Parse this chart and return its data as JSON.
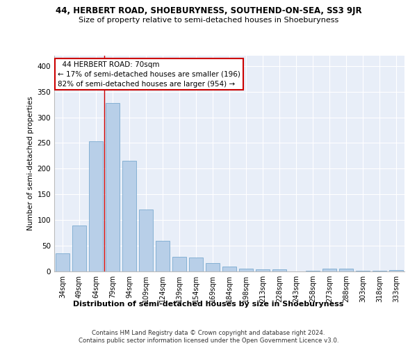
{
  "title_line1": "44, HERBERT ROAD, SHOEBURYNESS, SOUTHEND-ON-SEA, SS3 9JR",
  "title_line2": "Size of property relative to semi-detached houses in Shoeburyness",
  "xlabel": "Distribution of semi-detached houses by size in Shoeburyness",
  "ylabel": "Number of semi-detached properties",
  "categories": [
    "34sqm",
    "49sqm",
    "64sqm",
    "79sqm",
    "94sqm",
    "109sqm",
    "124sqm",
    "139sqm",
    "154sqm",
    "169sqm",
    "184sqm",
    "198sqm",
    "213sqm",
    "228sqm",
    "243sqm",
    "258sqm",
    "273sqm",
    "288sqm",
    "303sqm",
    "318sqm",
    "333sqm"
  ],
  "values": [
    35,
    90,
    253,
    328,
    215,
    120,
    60,
    28,
    27,
    16,
    10,
    6,
    4,
    4,
    0,
    2,
    5,
    5,
    2,
    1,
    3
  ],
  "bar_color": "#b8cfe8",
  "bar_edge_color": "#7aaacf",
  "vline_x": 2.5,
  "annotation_title": "44 HERBERT ROAD: 70sqm",
  "annotation_line1": "← 17% of semi-detached houses are smaller (196)",
  "annotation_line2": "82% of semi-detached houses are larger (954) →",
  "annotation_box_color": "#ffffff",
  "annotation_box_edge": "#cc0000",
  "vline_color": "#cc0000",
  "ylim": [
    0,
    420
  ],
  "yticks": [
    0,
    50,
    100,
    150,
    200,
    250,
    300,
    350,
    400
  ],
  "footer_line1": "Contains HM Land Registry data © Crown copyright and database right 2024.",
  "footer_line2": "Contains public sector information licensed under the Open Government Licence v3.0.",
  "background_color": "#ffffff",
  "plot_background": "#e8eef8",
  "grid_color": "#ffffff"
}
